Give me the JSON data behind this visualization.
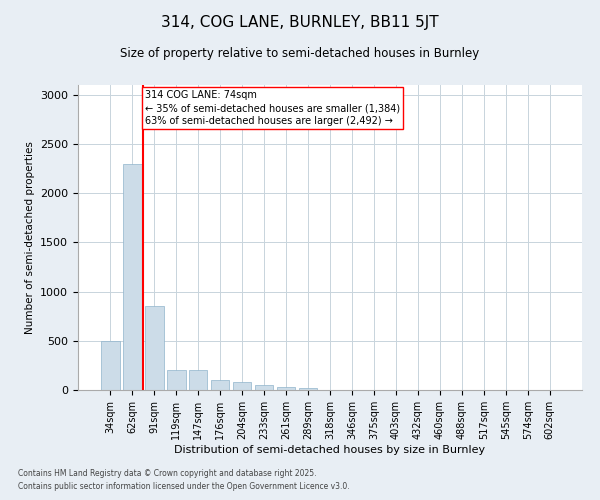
{
  "title1": "314, COG LANE, BURNLEY, BB11 5JT",
  "title2": "Size of property relative to semi-detached houses in Burnley",
  "xlabel": "Distribution of semi-detached houses by size in Burnley",
  "ylabel": "Number of semi-detached properties",
  "categories": [
    "34sqm",
    "62sqm",
    "91sqm",
    "119sqm",
    "147sqm",
    "176sqm",
    "204sqm",
    "233sqm",
    "261sqm",
    "289sqm",
    "318sqm",
    "346sqm",
    "375sqm",
    "403sqm",
    "432sqm",
    "460sqm",
    "488sqm",
    "517sqm",
    "545sqm",
    "574sqm",
    "602sqm"
  ],
  "values": [
    500,
    2300,
    850,
    200,
    200,
    100,
    80,
    50,
    30,
    20,
    5,
    2,
    0,
    0,
    0,
    0,
    0,
    0,
    0,
    0,
    0
  ],
  "bar_color": "#ccdce8",
  "bar_edge_color": "#90b4cc",
  "annotation_text": "314 COG LANE: 74sqm\n← 35% of semi-detached houses are smaller (1,384)\n63% of semi-detached houses are larger (2,492) →",
  "footer1": "Contains HM Land Registry data © Crown copyright and database right 2025.",
  "footer2": "Contains public sector information licensed under the Open Government Licence v3.0.",
  "ylim": [
    0,
    3100
  ],
  "yticks": [
    0,
    500,
    1000,
    1500,
    2000,
    2500,
    3000
  ],
  "bg_color": "#e8eef4",
  "plot_bg_color": "#ffffff",
  "grid_color": "#c8d4dc"
}
